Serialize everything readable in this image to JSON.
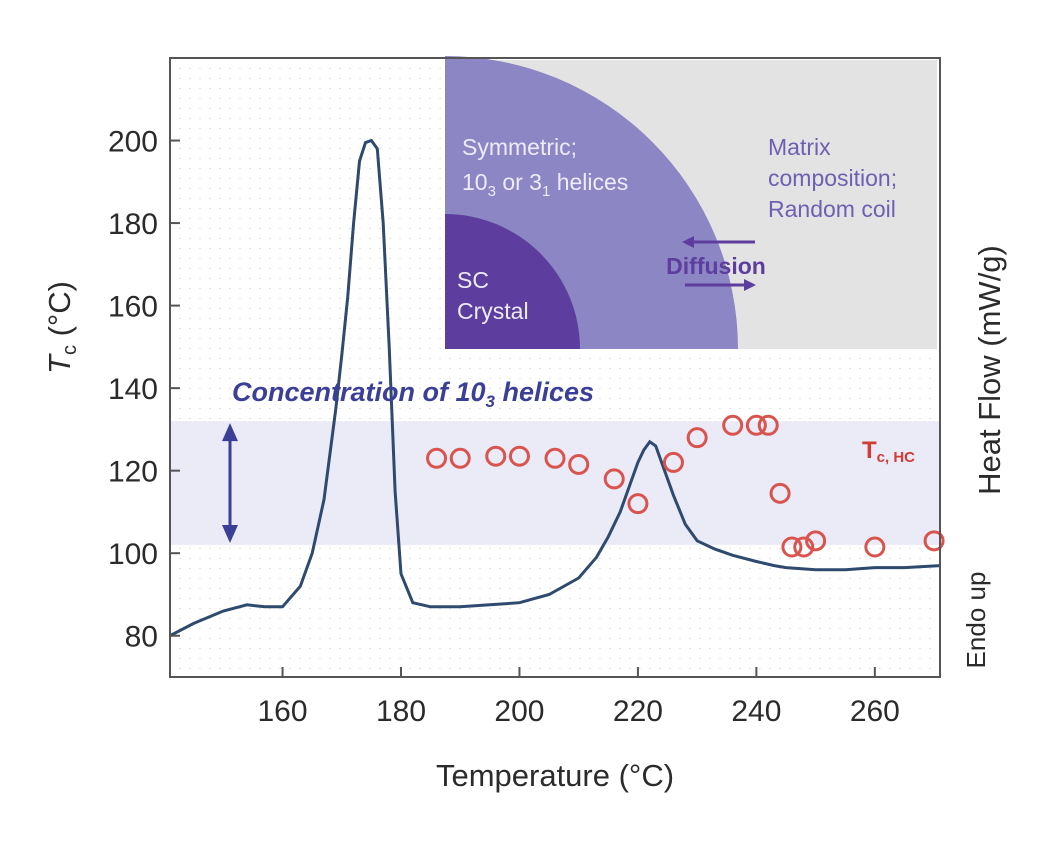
{
  "chart_data": {
    "type": "line",
    "xlabel": "Temperature (°C)",
    "ylabel_left": "T_c (°C)",
    "ylabel_right": "Heat Flow (mW/g)",
    "endo_label": "Endo up",
    "xlim": [
      141,
      271
    ],
    "ylim": [
      70,
      220
    ],
    "x_ticks": [
      160,
      180,
      200,
      220,
      240,
      260
    ],
    "y_ticks": [
      80,
      100,
      120,
      140,
      160,
      180,
      200
    ],
    "grid": "dotted",
    "series": [
      {
        "kind": "line",
        "color": "#2e4a6e",
        "x": [
          141,
          145,
          150,
          154,
          157,
          160,
          163,
          165,
          167,
          169,
          170,
          171,
          172,
          173,
          174,
          175,
          176,
          177,
          178,
          179,
          180,
          182,
          185,
          190,
          195,
          200,
          205,
          210,
          213,
          215,
          217,
          219,
          220,
          221,
          222,
          223,
          224,
          226,
          228,
          230,
          233,
          236,
          240,
          243,
          245,
          250,
          255,
          260,
          265,
          271
        ],
        "values": [
          80,
          83,
          86,
          87.5,
          87,
          87,
          92,
          100,
          113,
          135,
          148,
          162,
          180,
          195,
          199.5,
          200,
          198,
          180,
          150,
          115,
          95,
          88,
          87,
          87,
          87.5,
          88,
          90,
          94,
          99,
          104,
          110,
          118,
          122,
          125,
          127,
          126,
          122,
          114,
          107,
          103,
          101,
          99.5,
          98,
          97,
          96.5,
          96,
          96,
          96.5,
          96.5,
          97
        ]
      },
      {
        "kind": "scatter",
        "name": "T_c, HC",
        "color": "#d9534f",
        "x": [
          186,
          190,
          196,
          200,
          206,
          210,
          216,
          220,
          226,
          230,
          236,
          240,
          242,
          244,
          246,
          248,
          250,
          260,
          270
        ],
        "values": [
          123,
          123,
          123.5,
          123.5,
          123,
          121.5,
          118,
          112,
          122,
          128,
          131,
          131,
          131,
          114.5,
          101.5,
          101.5,
          103,
          101.5,
          103
        ]
      }
    ],
    "band": {
      "y": [
        102,
        132
      ],
      "color": "#e6e8f5"
    },
    "band_label": {
      "main": "Concentration of 10",
      "sub": "3",
      "tail": " helices",
      "color": "#3b3f98"
    },
    "scatter_label": {
      "main": "T",
      "sub": "c, HC",
      "color": "#d23a34"
    },
    "inset": {
      "background": "#e3e3e3",
      "mid_color": "#8c86c4",
      "core_color": "#5d3e9e",
      "outer_text_color": "#6f5fb3",
      "outer_lines": [
        "Matrix",
        "composition;",
        "Random coil"
      ],
      "mid_lines": [
        "Symmetric;",
        "10",
        "3",
        " or 3",
        "1",
        " helices"
      ],
      "core_lines": [
        "SC",
        "Crystal"
      ],
      "arrow_label": "Diffusion"
    }
  }
}
